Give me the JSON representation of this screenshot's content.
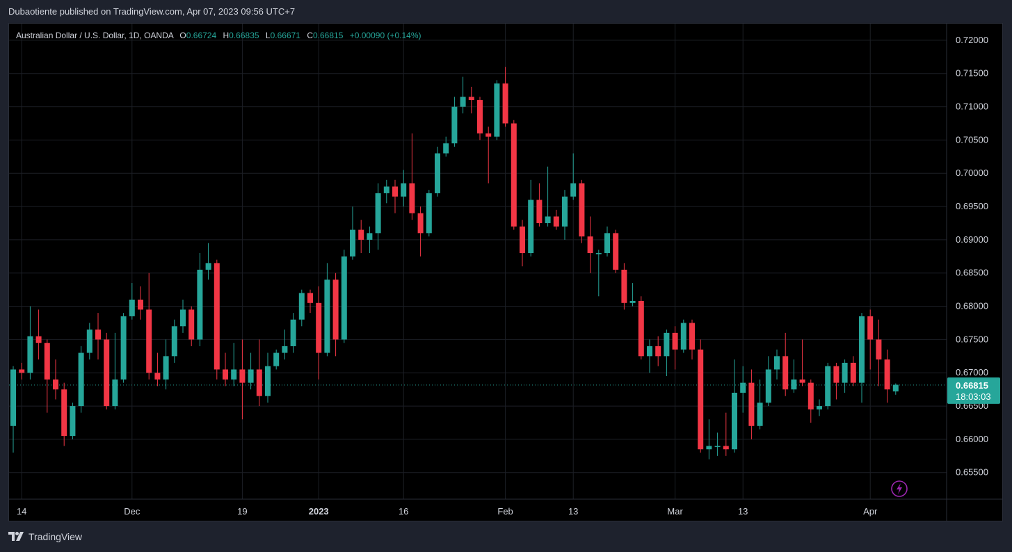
{
  "caption": "Dubaotiente published on TradingView.com, Apr 07, 2023 09:56 UTC+7",
  "brand": {
    "name": "TradingView",
    "logo_icon": "tradingview-logo-icon"
  },
  "legend": {
    "symbol": "Australian Dollar / U.S. Dollar, 1D, OANDA",
    "open_label": "O",
    "open": "0.66724",
    "high_label": "H",
    "high": "0.66835",
    "low_label": "L",
    "low": "0.66671",
    "close_label": "C",
    "close": "0.66815",
    "change": "+0.00090 (+0.14%)"
  },
  "price_tag": {
    "price": "0.66815",
    "countdown": "18:03:03"
  },
  "colors": {
    "up": "#26a69a",
    "down": "#f23645",
    "grid": "#1c1f26",
    "axis_text": "#d1d4dc",
    "background": "#000000",
    "accent": "#9c27b0"
  },
  "quick_action_icon": "lightning-icon",
  "chart_data": {
    "type": "candlestick",
    "title": "Australian Dollar / U.S. Dollar, 1D, OANDA",
    "ylim": [
      0.651,
      0.7225
    ],
    "y_ticks": [
      "0.72000",
      "0.71500",
      "0.71000",
      "0.70500",
      "0.70000",
      "0.69500",
      "0.69000",
      "0.68500",
      "0.68000",
      "0.67500",
      "0.67000",
      "0.66500",
      "0.66000",
      "0.65500"
    ],
    "x_ticks": [
      {
        "index": 1,
        "label": "14"
      },
      {
        "index": 14,
        "label": "Dec"
      },
      {
        "index": 27,
        "label": "19"
      },
      {
        "index": 36,
        "label": "2023"
      },
      {
        "index": 46,
        "label": "16"
      },
      {
        "index": 58,
        "label": "Feb"
      },
      {
        "index": 66,
        "label": "13"
      },
      {
        "index": 78,
        "label": "Mar"
      },
      {
        "index": 86,
        "label": "13"
      },
      {
        "index": 101,
        "label": "Apr"
      }
    ],
    "last_price": 0.66815,
    "grid": true,
    "candles": [
      [
        0.662,
        0.6705,
        0.658,
        0.671
      ],
      [
        0.6705,
        0.67,
        0.669,
        0.6715
      ],
      [
        0.67,
        0.6755,
        0.669,
        0.68
      ],
      [
        0.6755,
        0.6745,
        0.672,
        0.6795
      ],
      [
        0.6745,
        0.669,
        0.664,
        0.675
      ],
      [
        0.669,
        0.6675,
        0.666,
        0.672
      ],
      [
        0.6675,
        0.6605,
        0.659,
        0.6685
      ],
      [
        0.6605,
        0.665,
        0.66,
        0.6655
      ],
      [
        0.665,
        0.673,
        0.664,
        0.674
      ],
      [
        0.673,
        0.6765,
        0.672,
        0.6775
      ],
      [
        0.6765,
        0.675,
        0.672,
        0.679
      ],
      [
        0.675,
        0.665,
        0.6645,
        0.676
      ],
      [
        0.665,
        0.669,
        0.6645,
        0.676
      ],
      [
        0.669,
        0.6785,
        0.6685,
        0.679
      ],
      [
        0.6785,
        0.681,
        0.678,
        0.6835
      ],
      [
        0.681,
        0.6795,
        0.678,
        0.683
      ],
      [
        0.6795,
        0.67,
        0.669,
        0.685
      ],
      [
        0.67,
        0.669,
        0.668,
        0.673
      ],
      [
        0.669,
        0.6725,
        0.6675,
        0.675
      ],
      [
        0.6725,
        0.677,
        0.6715,
        0.678
      ],
      [
        0.677,
        0.6795,
        0.676,
        0.681
      ],
      [
        0.6795,
        0.675,
        0.674,
        0.68
      ],
      [
        0.675,
        0.6855,
        0.674,
        0.688
      ],
      [
        0.6855,
        0.6865,
        0.684,
        0.6895
      ],
      [
        0.6865,
        0.6705,
        0.669,
        0.687
      ],
      [
        0.6705,
        0.669,
        0.668,
        0.673
      ],
      [
        0.669,
        0.6705,
        0.668,
        0.6745
      ],
      [
        0.6705,
        0.6685,
        0.663,
        0.675
      ],
      [
        0.6685,
        0.6705,
        0.6675,
        0.673
      ],
      [
        0.6705,
        0.6665,
        0.665,
        0.675
      ],
      [
        0.6665,
        0.671,
        0.6655,
        0.673
      ],
      [
        0.671,
        0.673,
        0.6705,
        0.6735
      ],
      [
        0.673,
        0.674,
        0.672,
        0.6765
      ],
      [
        0.674,
        0.678,
        0.673,
        0.679
      ],
      [
        0.678,
        0.682,
        0.677,
        0.6825
      ],
      [
        0.682,
        0.6805,
        0.679,
        0.6825
      ],
      [
        0.6805,
        0.673,
        0.669,
        0.683
      ],
      [
        0.673,
        0.684,
        0.6725,
        0.6865
      ],
      [
        0.684,
        0.675,
        0.6725,
        0.685
      ],
      [
        0.675,
        0.6875,
        0.6745,
        0.6885
      ],
      [
        0.6875,
        0.6915,
        0.687,
        0.695
      ],
      [
        0.6915,
        0.69,
        0.688,
        0.693
      ],
      [
        0.69,
        0.691,
        0.688,
        0.692
      ],
      [
        0.691,
        0.697,
        0.6885,
        0.6985
      ],
      [
        0.697,
        0.698,
        0.6955,
        0.699
      ],
      [
        0.698,
        0.6965,
        0.694,
        0.699
      ],
      [
        0.6965,
        0.6985,
        0.695,
        0.7005
      ],
      [
        0.6985,
        0.694,
        0.693,
        0.706
      ],
      [
        0.694,
        0.691,
        0.6875,
        0.695
      ],
      [
        0.691,
        0.697,
        0.6905,
        0.6975
      ],
      [
        0.697,
        0.703,
        0.6965,
        0.704
      ],
      [
        0.703,
        0.7045,
        0.7025,
        0.7055
      ],
      [
        0.7045,
        0.71,
        0.704,
        0.7115
      ],
      [
        0.71,
        0.7115,
        0.709,
        0.7145
      ],
      [
        0.7115,
        0.711,
        0.709,
        0.713
      ],
      [
        0.711,
        0.706,
        0.705,
        0.7115
      ],
      [
        0.706,
        0.7055,
        0.6985,
        0.707
      ],
      [
        0.7055,
        0.7135,
        0.705,
        0.714
      ],
      [
        0.7135,
        0.7075,
        0.707,
        0.716
      ],
      [
        0.7075,
        0.692,
        0.6915,
        0.708
      ],
      [
        0.692,
        0.688,
        0.686,
        0.693
      ],
      [
        0.688,
        0.696,
        0.6875,
        0.699
      ],
      [
        0.696,
        0.6925,
        0.692,
        0.6985
      ],
      [
        0.6925,
        0.6935,
        0.692,
        0.701
      ],
      [
        0.6935,
        0.692,
        0.6915,
        0.6945
      ],
      [
        0.692,
        0.6965,
        0.69,
        0.6975
      ],
      [
        0.6965,
        0.6985,
        0.696,
        0.703
      ],
      [
        0.6985,
        0.6905,
        0.6895,
        0.699
      ],
      [
        0.6905,
        0.688,
        0.685,
        0.6935
      ],
      [
        0.688,
        0.688,
        0.6815,
        0.6885
      ],
      [
        0.688,
        0.691,
        0.6875,
        0.692
      ],
      [
        0.691,
        0.6855,
        0.685,
        0.6915
      ],
      [
        0.6855,
        0.6805,
        0.6795,
        0.6865
      ],
      [
        0.6805,
        0.6808,
        0.68,
        0.6835
      ],
      [
        0.6808,
        0.6725,
        0.672,
        0.6815
      ],
      [
        0.6725,
        0.674,
        0.67,
        0.675
      ],
      [
        0.674,
        0.6725,
        0.671,
        0.6755
      ],
      [
        0.6725,
        0.676,
        0.6695,
        0.6765
      ],
      [
        0.676,
        0.6735,
        0.6705,
        0.677
      ],
      [
        0.6735,
        0.6775,
        0.673,
        0.678
      ],
      [
        0.6775,
        0.6735,
        0.672,
        0.678
      ],
      [
        0.6735,
        0.6585,
        0.658,
        0.675
      ],
      [
        0.6585,
        0.659,
        0.657,
        0.663
      ],
      [
        0.659,
        0.659,
        0.6575,
        0.661
      ],
      [
        0.659,
        0.6585,
        0.6575,
        0.664
      ],
      [
        0.6585,
        0.667,
        0.658,
        0.672
      ],
      [
        0.667,
        0.6685,
        0.664,
        0.671
      ],
      [
        0.6685,
        0.662,
        0.66,
        0.6705
      ],
      [
        0.662,
        0.6655,
        0.6615,
        0.669
      ],
      [
        0.6655,
        0.6705,
        0.665,
        0.6725
      ],
      [
        0.6705,
        0.6725,
        0.669,
        0.6735
      ],
      [
        0.6725,
        0.6675,
        0.6665,
        0.676
      ],
      [
        0.6675,
        0.669,
        0.667,
        0.672
      ],
      [
        0.669,
        0.6685,
        0.668,
        0.675
      ],
      [
        0.6685,
        0.6645,
        0.6625,
        0.669
      ],
      [
        0.6645,
        0.665,
        0.6635,
        0.666
      ],
      [
        0.665,
        0.671,
        0.6645,
        0.6715
      ],
      [
        0.671,
        0.6685,
        0.666,
        0.6715
      ],
      [
        0.6685,
        0.6715,
        0.667,
        0.672
      ],
      [
        0.6715,
        0.6685,
        0.668,
        0.6725
      ],
      [
        0.6685,
        0.6785,
        0.6655,
        0.679
      ],
      [
        0.6785,
        0.675,
        0.6705,
        0.6795
      ],
      [
        0.675,
        0.672,
        0.668,
        0.678
      ],
      [
        0.672,
        0.6675,
        0.6655,
        0.6735
      ],
      [
        0.6672,
        0.6682,
        0.6667,
        0.6684
      ]
    ]
  }
}
